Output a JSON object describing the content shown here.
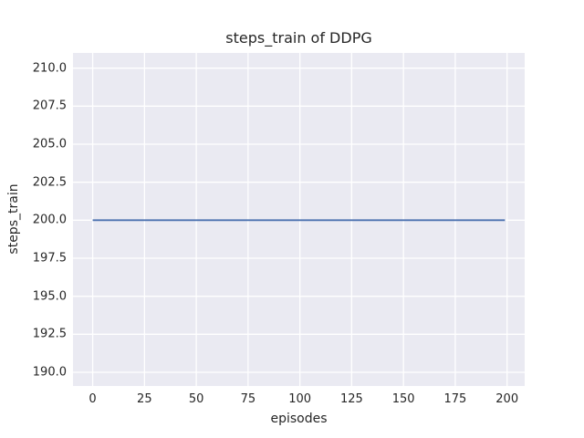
{
  "chart_data": {
    "type": "line",
    "title": "steps_train of DDPG",
    "xlabel": "episodes",
    "ylabel": "steps_train",
    "series": [
      {
        "name": "steps_train",
        "x": [
          0,
          199
        ],
        "y": [
          200,
          200
        ]
      }
    ],
    "xlim": [
      -9.5,
      208.5
    ],
    "ylim": [
      189.1,
      211.0
    ],
    "xtick_values": [
      0,
      25,
      50,
      75,
      100,
      125,
      150,
      175,
      200
    ],
    "xtick_labels": [
      "0",
      "25",
      "50",
      "75",
      "100",
      "125",
      "150",
      "175",
      "200"
    ],
    "ytick_values": [
      190.0,
      192.5,
      195.0,
      197.5,
      200.0,
      202.5,
      205.0,
      207.5,
      210.0
    ],
    "ytick_labels": [
      "190.0",
      "192.5",
      "195.0",
      "197.5",
      "200.0",
      "202.5",
      "205.0",
      "207.5",
      "210.0"
    ],
    "grid": true,
    "legend": "none",
    "line_color": "#4c72b0",
    "plot_bg_color": "#eaeaf2",
    "grid_color": "#ffffff",
    "text_color": "#262626"
  }
}
